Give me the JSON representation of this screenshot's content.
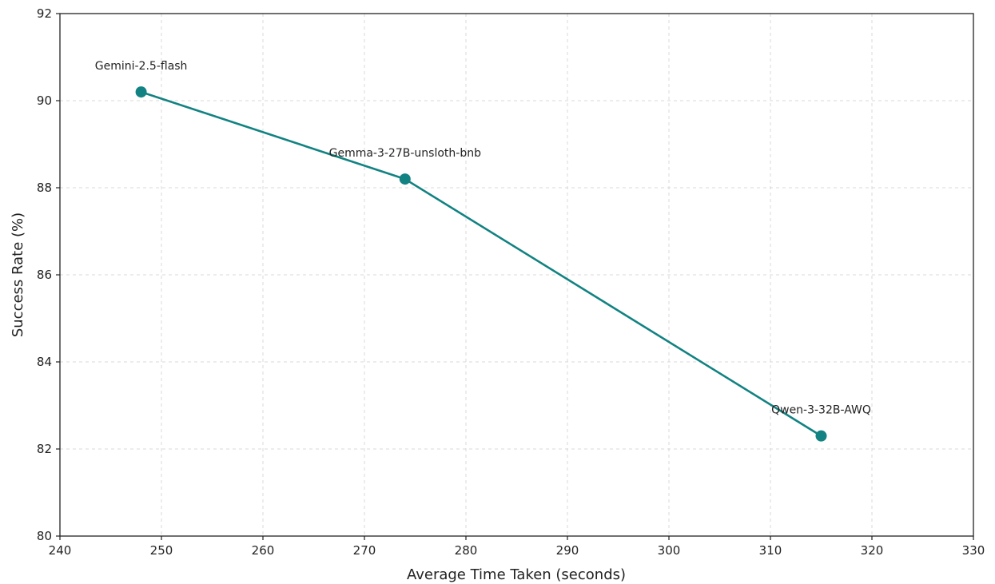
{
  "chart_data": {
    "type": "line",
    "xlabel": "Average Time Taken (seconds)",
    "ylabel": "Success Rate (%)",
    "xlim": [
      240,
      330
    ],
    "ylim": [
      80,
      92
    ],
    "xticks": [
      240,
      250,
      260,
      270,
      280,
      290,
      300,
      310,
      320,
      330
    ],
    "yticks": [
      80,
      82,
      84,
      86,
      88,
      90,
      92
    ],
    "grid": true,
    "series": [
      {
        "color": "#128282",
        "points": [
          {
            "x": 248,
            "y": 90.2,
            "label": "Gemini-2.5-flash"
          },
          {
            "x": 274,
            "y": 88.2,
            "label": "Gemma-3-27B-unsloth-bnb"
          },
          {
            "x": 315,
            "y": 82.3,
            "label": "Qwen-3-32B-AWQ"
          }
        ]
      }
    ]
  }
}
